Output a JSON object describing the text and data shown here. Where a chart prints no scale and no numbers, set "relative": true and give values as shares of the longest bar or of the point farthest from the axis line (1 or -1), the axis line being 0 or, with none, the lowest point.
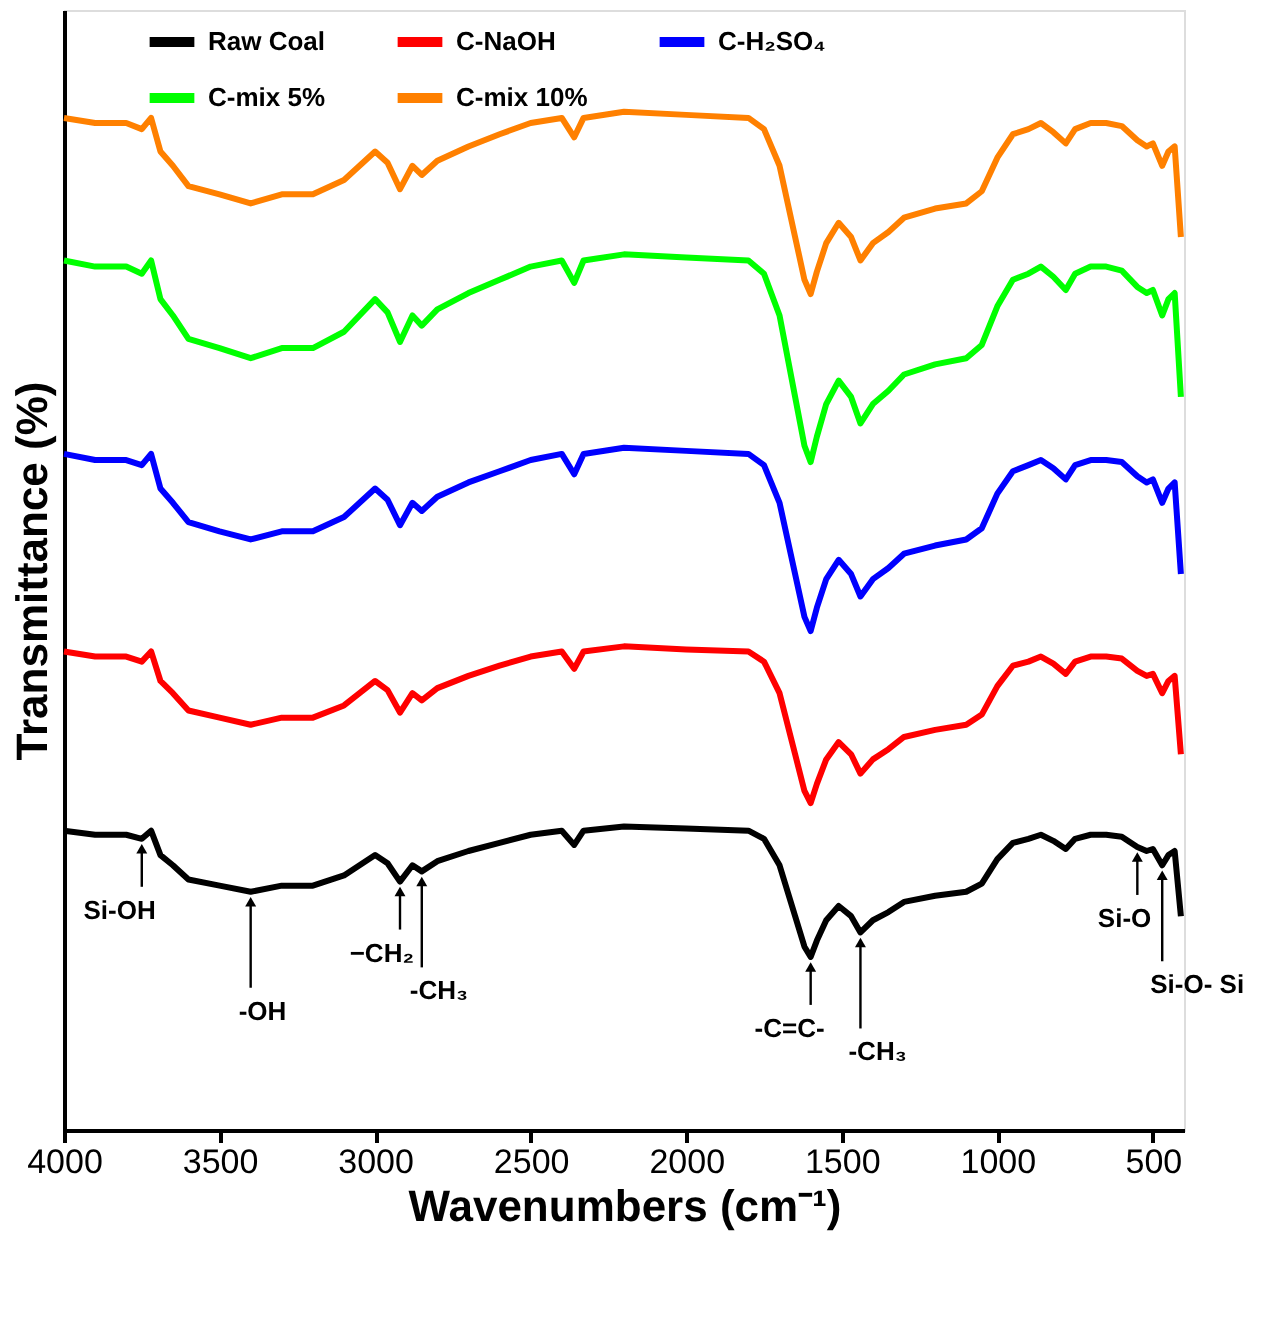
{
  "chart_data": {
    "type": "line",
    "relative": true,
    "xlabel": "Wavenumbers (cm⁻¹)",
    "ylabel": "Transmittance (%)",
    "x": [
      4000,
      3900,
      3800,
      3750,
      3720,
      3690,
      3650,
      3600,
      3500,
      3400,
      3300,
      3200,
      3100,
      3000,
      2960,
      2920,
      2880,
      2850,
      2800,
      2700,
      2600,
      2500,
      2400,
      2360,
      2330,
      2200,
      2000,
      1800,
      1750,
      1700,
      1650,
      1620,
      1600,
      1580,
      1550,
      1510,
      1470,
      1440,
      1400,
      1350,
      1300,
      1200,
      1100,
      1050,
      1000,
      950,
      900,
      860,
      820,
      780,
      750,
      700,
      650,
      600,
      550,
      520,
      500,
      470,
      450,
      430,
      410
    ],
    "xlim": [
      4000,
      400
    ],
    "xticks": [
      4000,
      3500,
      3000,
      2500,
      2000,
      1500,
      1000,
      500
    ],
    "legend": "top",
    "grid": false,
    "line_style": "solid",
    "marker": "none",
    "series": [
      {
        "name": "Raw Coal",
        "color": "#000000",
        "values": [
          0.294,
          0.29,
          0.29,
          0.286,
          0.294,
          0.27,
          0.26,
          0.246,
          0.24,
          0.234,
          0.24,
          0.24,
          0.25,
          0.27,
          0.262,
          0.244,
          0.26,
          0.254,
          0.264,
          0.274,
          0.282,
          0.29,
          0.294,
          0.28,
          0.294,
          0.298,
          0.296,
          0.294,
          0.286,
          0.26,
          0.21,
          0.18,
          0.17,
          0.186,
          0.206,
          0.22,
          0.21,
          0.194,
          0.206,
          0.214,
          0.224,
          0.23,
          0.234,
          0.242,
          0.266,
          0.282,
          0.286,
          0.29,
          0.284,
          0.276,
          0.286,
          0.29,
          0.29,
          0.288,
          0.278,
          0.274,
          0.276,
          0.26,
          0.27,
          0.274,
          0.21
        ]
      },
      {
        "name": "C-NaOH",
        "color": "#ff0000",
        "values": [
          0.47,
          0.465,
          0.465,
          0.46,
          0.47,
          0.441,
          0.429,
          0.412,
          0.405,
          0.398,
          0.405,
          0.405,
          0.417,
          0.441,
          0.432,
          0.41,
          0.429,
          0.422,
          0.434,
          0.446,
          0.456,
          0.465,
          0.47,
          0.453,
          0.47,
          0.475,
          0.472,
          0.47,
          0.46,
          0.429,
          0.369,
          0.333,
          0.321,
          0.34,
          0.364,
          0.381,
          0.369,
          0.35,
          0.364,
          0.374,
          0.386,
          0.393,
          0.398,
          0.408,
          0.436,
          0.456,
          0.46,
          0.465,
          0.458,
          0.448,
          0.46,
          0.465,
          0.465,
          0.463,
          0.451,
          0.446,
          0.448,
          0.429,
          0.441,
          0.446,
          0.369
        ]
      },
      {
        "name": "C-H₂SO₄",
        "color": "#0000ff",
        "values": [
          0.664,
          0.658,
          0.658,
          0.653,
          0.664,
          0.63,
          0.616,
          0.597,
          0.588,
          0.58,
          0.588,
          0.588,
          0.602,
          0.63,
          0.619,
          0.594,
          0.616,
          0.608,
          0.622,
          0.636,
          0.647,
          0.658,
          0.664,
          0.644,
          0.664,
          0.67,
          0.667,
          0.664,
          0.653,
          0.616,
          0.546,
          0.504,
          0.49,
          0.513,
          0.541,
          0.56,
          0.546,
          0.524,
          0.541,
          0.552,
          0.566,
          0.574,
          0.58,
          0.591,
          0.625,
          0.647,
          0.653,
          0.658,
          0.65,
          0.639,
          0.653,
          0.658,
          0.658,
          0.656,
          0.642,
          0.636,
          0.639,
          0.616,
          0.63,
          0.636,
          0.546
        ]
      },
      {
        "name": "C-mix 5%",
        "color": "#00ff00",
        "values": [
          0.854,
          0.848,
          0.848,
          0.841,
          0.854,
          0.816,
          0.8,
          0.777,
          0.768,
          0.758,
          0.768,
          0.768,
          0.784,
          0.816,
          0.803,
          0.774,
          0.8,
          0.79,
          0.806,
          0.822,
          0.835,
          0.848,
          0.854,
          0.832,
          0.854,
          0.86,
          0.857,
          0.854,
          0.841,
          0.8,
          0.72,
          0.672,
          0.656,
          0.681,
          0.713,
          0.736,
          0.72,
          0.694,
          0.713,
          0.726,
          0.742,
          0.752,
          0.758,
          0.771,
          0.809,
          0.835,
          0.841,
          0.848,
          0.838,
          0.825,
          0.841,
          0.848,
          0.848,
          0.844,
          0.828,
          0.822,
          0.825,
          0.8,
          0.816,
          0.822,
          0.72
        ]
      },
      {
        "name": "C-mix 10%",
        "color": "#ff8000",
        "values": [
          0.994,
          0.989,
          0.989,
          0.983,
          0.994,
          0.961,
          0.947,
          0.927,
          0.919,
          0.91,
          0.919,
          0.919,
          0.933,
          0.961,
          0.95,
          0.924,
          0.947,
          0.938,
          0.952,
          0.966,
          0.978,
          0.989,
          0.994,
          0.975,
          0.994,
          1.0,
          0.997,
          0.994,
          0.983,
          0.947,
          0.877,
          0.835,
          0.821,
          0.843,
          0.871,
          0.891,
          0.877,
          0.854,
          0.871,
          0.882,
          0.896,
          0.905,
          0.91,
          0.922,
          0.955,
          0.978,
          0.983,
          0.989,
          0.98,
          0.969,
          0.983,
          0.989,
          0.989,
          0.986,
          0.972,
          0.966,
          0.969,
          0.947,
          0.961,
          0.966,
          0.877
        ]
      }
    ],
    "annotations": [
      {
        "text": "Si-OH",
        "x": 3750,
        "y": 0.286
      },
      {
        "text": "-OH",
        "x": 3400,
        "y": 0.234
      },
      {
        "text": "−CH₂",
        "x": 2920,
        "y": 0.244
      },
      {
        "text": "-CH₃",
        "x": 2850,
        "y": 0.254
      },
      {
        "text": "-C=C-",
        "x": 1600,
        "y": 0.17
      },
      {
        "text": "-CH₃",
        "x": 1440,
        "y": 0.194
      },
      {
        "text": "Si-O",
        "x": 550,
        "y": 0.278
      },
      {
        "text": "Si-O- Si",
        "x": 470,
        "y": 0.26
      }
    ]
  }
}
